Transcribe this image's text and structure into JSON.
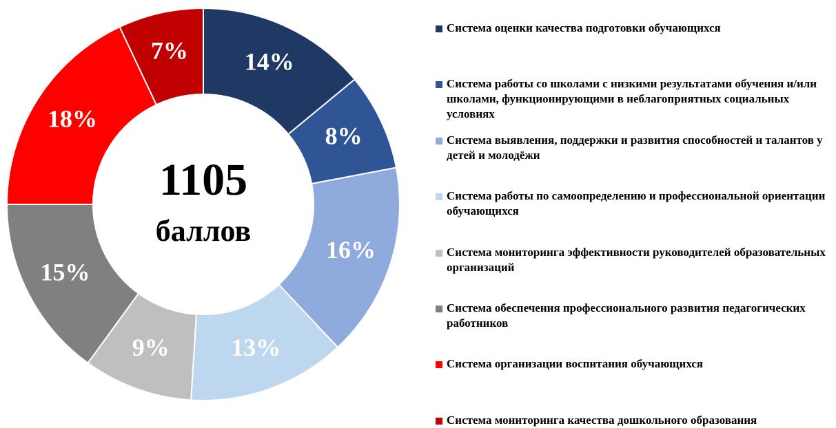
{
  "chart_data": {
    "type": "donut",
    "categories": [
      "Система оценки качества подготовки обучающихся",
      "Система работы со школами с низкими результатами обучения и/или школами, функционирующими в неблагоприятных социальных условиях",
      "Система выявления, поддержки и развития способностей и талантов у детей и молодёжи",
      "Система работы по самоопределению и профессиональной ориентации обучающихся",
      "Система мониторинга эффективности руководителей образовательных организаций",
      "Система обеспечения профессионального развития педагогических работников",
      "Система организации воспитания обучающихся",
      "Система мониторинга качества дошкольного образования"
    ],
    "values": [
      14,
      8,
      16,
      13,
      9,
      15,
      18,
      7
    ],
    "value_labels": [
      "14%",
      "8%",
      "16%",
      "13%",
      "9%",
      "15%",
      "18%",
      "7%"
    ],
    "colors": [
      "#203864",
      "#2f5597",
      "#8faadc",
      "#bdd7ee",
      "#bfbfbf",
      "#808080",
      "#ff0000",
      "#c00000"
    ],
    "total": 1105,
    "total_label": "баллов",
    "legend": "right"
  }
}
